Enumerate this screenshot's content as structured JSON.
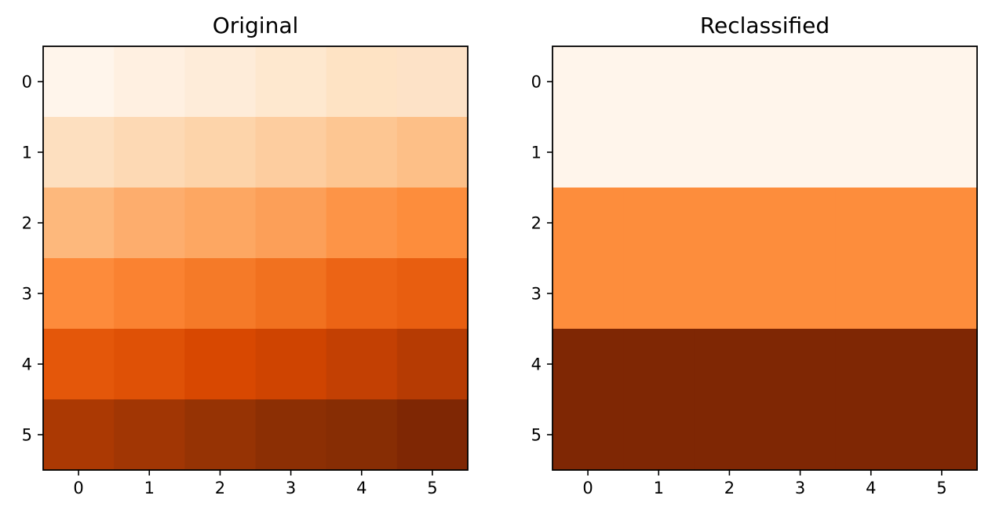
{
  "chart_data": [
    {
      "type": "heatmap",
      "title": "Original",
      "xlabel": "",
      "ylabel": "",
      "x_ticks": [
        "0",
        "1",
        "2",
        "3",
        "4",
        "5"
      ],
      "y_ticks": [
        "0",
        "1",
        "2",
        "3",
        "4",
        "5"
      ],
      "x_range": [
        -0.5,
        5.5
      ],
      "y_range": [
        -0.5,
        5.5
      ],
      "y_inverted": true,
      "colormap": "Oranges",
      "grid": false,
      "values": [
        [
          0,
          1,
          2,
          3,
          4,
          5
        ],
        [
          6,
          7,
          8,
          9,
          10,
          11
        ],
        [
          12,
          13,
          14,
          15,
          16,
          17
        ],
        [
          18,
          19,
          20,
          21,
          22,
          23
        ],
        [
          24,
          25,
          26,
          27,
          28,
          29
        ],
        [
          30,
          31,
          32,
          33,
          34,
          35
        ]
      ],
      "colors": [
        [
          "#fff5eb",
          "#fff0e1",
          "#feecd9",
          "#fee8cf",
          "#fee3c4",
          "#fde2c7"
        ],
        [
          "#fddfbf",
          "#fdd9b4",
          "#fdd4aa",
          "#fdcd9f",
          "#fdc692",
          "#fdbf87"
        ],
        [
          "#fdb87c",
          "#fdad6d",
          "#fda762",
          "#fc9f58",
          "#fd9447",
          "#fd8d3c"
        ],
        [
          "#fd8b3b",
          "#fa8231",
          "#f57a28",
          "#f1711f",
          "#ec6415",
          "#e85e10"
        ],
        [
          "#e4570a",
          "#df5106",
          "#d84801",
          "#cf4401",
          "#c34003",
          "#b63b03"
        ],
        [
          "#ab3903",
          "#a13604",
          "#963304",
          "#8c2f04",
          "#872d04",
          "#7f2704"
        ]
      ]
    },
    {
      "type": "heatmap",
      "title": "Reclassified",
      "xlabel": "",
      "ylabel": "",
      "x_ticks": [
        "0",
        "1",
        "2",
        "3",
        "4",
        "5"
      ],
      "y_ticks": [
        "0",
        "1",
        "2",
        "3",
        "4",
        "5"
      ],
      "x_range": [
        -0.5,
        5.5
      ],
      "y_range": [
        -0.5,
        5.5
      ],
      "y_inverted": true,
      "colormap": "Oranges",
      "grid": false,
      "values": [
        [
          1,
          1,
          1,
          1,
          1,
          1
        ],
        [
          1,
          1,
          1,
          1,
          1,
          1
        ],
        [
          2,
          2,
          2,
          2,
          2,
          2
        ],
        [
          2,
          2,
          2,
          2,
          2,
          2
        ],
        [
          3,
          3,
          3,
          3,
          3,
          3
        ],
        [
          3,
          3,
          3,
          3,
          3,
          3
        ]
      ],
      "colors": [
        [
          "#fff5eb",
          "#fff5eb",
          "#fff5eb",
          "#fff5eb",
          "#fff5eb",
          "#fff5eb"
        ],
        [
          "#fff5eb",
          "#fff5eb",
          "#fff5eb",
          "#fff5eb",
          "#fff5eb",
          "#fff5eb"
        ],
        [
          "#fd8d3c",
          "#fd8d3c",
          "#fd8d3c",
          "#fd8d3c",
          "#fd8d3c",
          "#fd8d3c"
        ],
        [
          "#fd8d3c",
          "#fd8d3c",
          "#fd8d3c",
          "#fd8d3c",
          "#fd8d3c",
          "#fd8d3c"
        ],
        [
          "#7f2704",
          "#7f2704",
          "#7f2704",
          "#7f2704",
          "#7f2704",
          "#7f2704"
        ],
        [
          "#7f2704",
          "#7f2704",
          "#7f2704",
          "#7f2704",
          "#7f2704",
          "#7f2704"
        ]
      ]
    }
  ]
}
